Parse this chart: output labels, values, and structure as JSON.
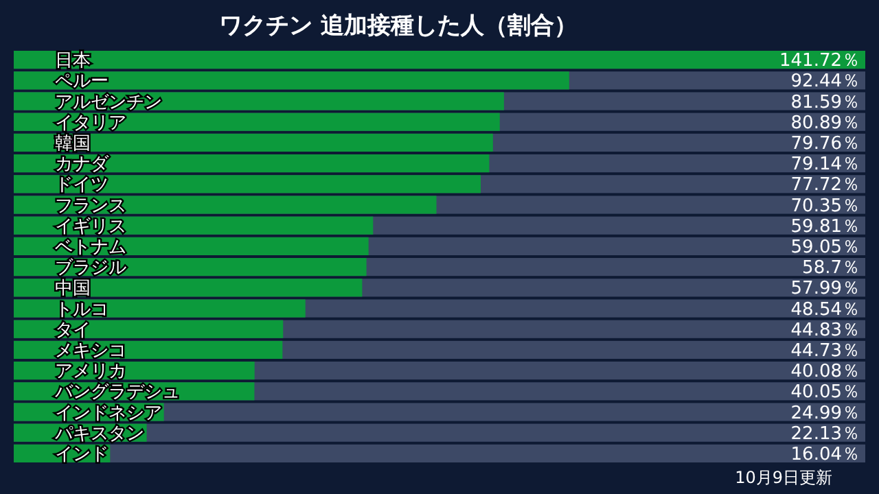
{
  "chart_data": {
    "type": "bar",
    "orientation": "horizontal",
    "title": "ワクチン 追加接種した人（割合）",
    "categories": [
      "日本",
      "ペルー",
      "アルゼンチン",
      "イタリア",
      "韓国",
      "カナダ",
      "ドイツ",
      "フランス",
      "イギリス",
      "ベトナム",
      "ブラジル",
      "中国",
      "トルコ",
      "タイ",
      "メキシコ",
      "アメリカ",
      "バングラデシュ",
      "インドネシア",
      "パキスタン",
      "インド"
    ],
    "values": [
      141.72,
      92.44,
      81.59,
      80.89,
      79.76,
      79.14,
      77.72,
      70.35,
      59.81,
      59.05,
      58.7,
      57.99,
      48.54,
      44.83,
      44.73,
      40.08,
      40.05,
      24.99,
      22.13,
      16.04
    ],
    "value_labels": [
      "141.72％",
      "92.44％",
      "81.59％",
      "80.89％",
      "79.76％",
      "79.14％",
      "77.72％",
      "70.35％",
      "59.81％",
      "59.05％",
      "58.7％",
      "57.99％",
      "48.54％",
      "44.83％",
      "44.73％",
      "40.08％",
      "40.05％",
      "24.99％",
      "22.13％",
      "16.04％"
    ],
    "color": "#0c9a3c",
    "annotations": [
      "10月9日更新"
    ]
  }
}
